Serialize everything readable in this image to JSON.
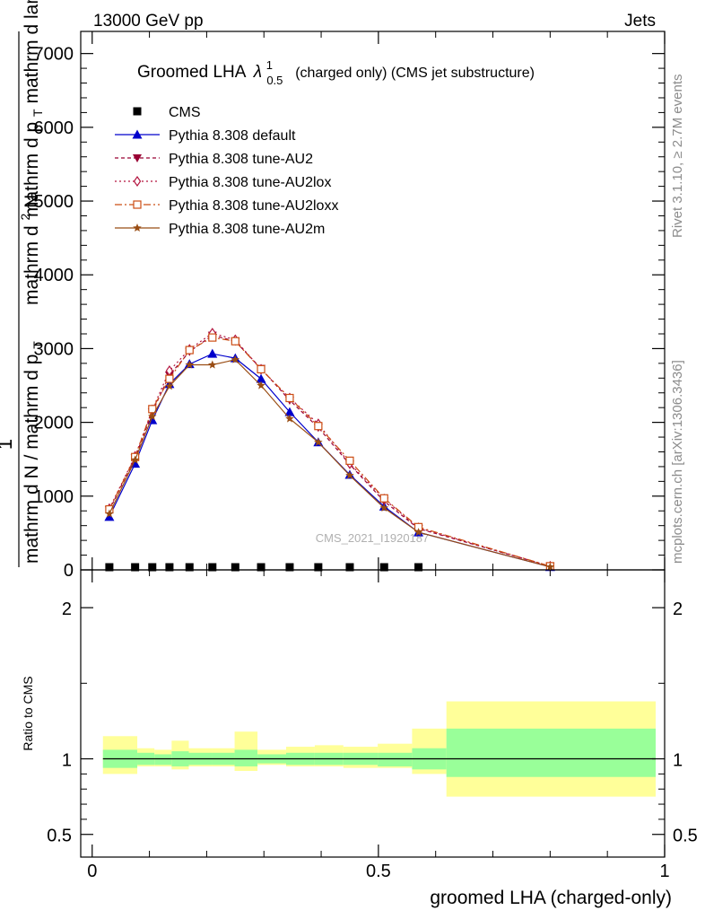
{
  "header": {
    "energy": "13000 GeV pp",
    "category": "Jets"
  },
  "side": {
    "rivet": "Rivet 3.1.10, ≥ 2.7M events",
    "mcplots": "mcplots.cern.ch [arXiv:1306.3436]"
  },
  "colors": {
    "cms": "#000000",
    "default": "#0000cc",
    "au2": "#990033",
    "au2lox": "#b3153f",
    "au2loxx": "#cc4d14",
    "au2m": "#994d14",
    "band_inner": "#99ff99",
    "band_outer": "#ffff99"
  },
  "chart_data": [
    {
      "type": "line",
      "title": "Groomed LHA",
      "title_symbol": "λ",
      "title_sub": "0.5",
      "title_sup": "1",
      "title_suffix": "(charged only) (CMS jet substructure)",
      "ylabel_parts": [
        "1",
        "mathrm d N / mathrm d p",
        "T",
        "mathrm d",
        "2",
        "N",
        "mathrm d p",
        "T",
        "mathrm d lambda"
      ],
      "watermark": "CMS_2021_I1920187",
      "ylim": [
        0,
        7300
      ],
      "yticks": [
        0,
        1000,
        2000,
        3000,
        4000,
        5000,
        6000,
        7000
      ],
      "ytick_labels": [
        "0",
        "1000",
        "2000",
        "3000",
        "4000",
        "5000",
        "6000",
        "7000"
      ],
      "xlim": [
        -0.02,
        1.0
      ],
      "legend_position": "top-left",
      "series": [
        {
          "name": "CMS",
          "marker": "square",
          "x": [
            0.03,
            0.075,
            0.105,
            0.135,
            0.17,
            0.21,
            0.25,
            0.295,
            0.345,
            0.395,
            0.45,
            0.51,
            0.57
          ],
          "y": [
            8,
            8,
            8,
            8,
            8,
            8,
            8,
            8,
            8,
            8,
            8,
            8,
            8
          ]
        },
        {
          "name": "Pythia 8.308 default",
          "marker": "triangle-up",
          "dash": "solid",
          "x": [
            0.03,
            0.075,
            0.105,
            0.135,
            0.17,
            0.21,
            0.25,
            0.295,
            0.345,
            0.395,
            0.45,
            0.51,
            0.57,
            0.8
          ],
          "y": [
            720,
            1440,
            2030,
            2520,
            2790,
            2930,
            2870,
            2590,
            2140,
            1730,
            1290,
            860,
            510,
            40
          ]
        },
        {
          "name": "Pythia 8.308 tune-AU2",
          "marker": "triangle-down",
          "dash": "4,3",
          "x": [
            0.03,
            0.075,
            0.105,
            0.135,
            0.17,
            0.21,
            0.25,
            0.295,
            0.345,
            0.395,
            0.45,
            0.51,
            0.57,
            0.8
          ],
          "y": [
            810,
            1520,
            2140,
            2640,
            2960,
            3180,
            3100,
            2730,
            2300,
            1930,
            1430,
            930,
            560,
            50
          ]
        },
        {
          "name": "Pythia 8.308 tune-AU2lox",
          "marker": "diamond",
          "dash": "2,3",
          "x": [
            0.03,
            0.075,
            0.105,
            0.135,
            0.17,
            0.21,
            0.25,
            0.295,
            0.345,
            0.395,
            0.45,
            0.51,
            0.57,
            0.8
          ],
          "y": [
            830,
            1540,
            2170,
            2700,
            2990,
            3210,
            3120,
            2720,
            2330,
            1980,
            1440,
            960,
            570,
            50
          ]
        },
        {
          "name": "Pythia 8.308 tune-AU2loxx",
          "marker": "square-open",
          "dash": "8,3,2,3",
          "x": [
            0.03,
            0.075,
            0.105,
            0.135,
            0.17,
            0.21,
            0.25,
            0.295,
            0.345,
            0.395,
            0.45,
            0.51,
            0.57,
            0.8
          ],
          "y": [
            820,
            1530,
            2180,
            2590,
            2980,
            3150,
            3100,
            2720,
            2330,
            1950,
            1480,
            970,
            580,
            50
          ]
        },
        {
          "name": "Pythia 8.308 tune-AU2m",
          "marker": "star",
          "dash": "solid",
          "x": [
            0.03,
            0.075,
            0.105,
            0.135,
            0.17,
            0.21,
            0.25,
            0.295,
            0.345,
            0.395,
            0.45,
            0.51,
            0.57,
            0.8
          ],
          "y": [
            760,
            1490,
            2080,
            2490,
            2780,
            2780,
            2850,
            2500,
            2050,
            1730,
            1280,
            840,
            510,
            40
          ]
        }
      ]
    },
    {
      "type": "area",
      "ylabel": "Ratio to CMS",
      "xlabel": "groomed LHA (charged-only)",
      "xlim": [
        -0.02,
        1.0
      ],
      "xticks": [
        0,
        0.5,
        1
      ],
      "xtick_labels": [
        "0",
        "0.5",
        "1"
      ],
      "ylim": [
        0.35,
        2.25
      ],
      "yticks": [
        0.5,
        1,
        2
      ],
      "ytick_labels": [
        "0.5",
        "1",
        "2"
      ],
      "reference_line": 1,
      "bin_edges": [
        0.0,
        0.06,
        0.09,
        0.12,
        0.15,
        0.19,
        0.23,
        0.27,
        0.32,
        0.37,
        0.42,
        0.48,
        0.54,
        0.6,
        1.0
      ],
      "band_inner": [
        [
          0.94,
          1.06
        ],
        [
          0.96,
          1.04
        ],
        [
          0.96,
          1.03
        ],
        [
          0.95,
          1.05
        ],
        [
          0.96,
          1.04
        ],
        [
          0.96,
          1.04
        ],
        [
          0.95,
          1.06
        ],
        [
          0.97,
          1.03
        ],
        [
          0.96,
          1.04
        ],
        [
          0.96,
          1.04
        ],
        [
          0.96,
          1.04
        ],
        [
          0.95,
          1.04
        ],
        [
          0.93,
          1.07
        ],
        [
          0.88,
          1.2
        ]
      ],
      "band_outer": [
        [
          0.9,
          1.15
        ],
        [
          0.95,
          1.07
        ],
        [
          0.95,
          1.06
        ],
        [
          0.93,
          1.12
        ],
        [
          0.95,
          1.07
        ],
        [
          0.95,
          1.07
        ],
        [
          0.92,
          1.18
        ],
        [
          0.96,
          1.06
        ],
        [
          0.95,
          1.08
        ],
        [
          0.95,
          1.09
        ],
        [
          0.94,
          1.08
        ],
        [
          0.94,
          1.1
        ],
        [
          0.9,
          1.2
        ],
        [
          0.75,
          1.38
        ]
      ]
    }
  ]
}
